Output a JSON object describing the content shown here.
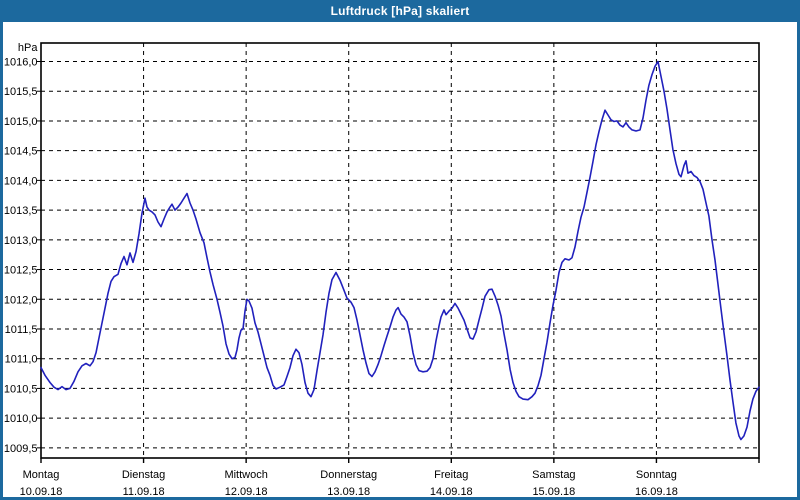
{
  "window": {
    "title": "Luftdruck [hPa] skaliert",
    "title_bar_color": "#1c699e",
    "border_color": "#1c699e",
    "content_background": "#ffffff"
  },
  "chart_data": {
    "type": "line",
    "title": "Luftdruck [hPa] skaliert",
    "ylabel": "hPa",
    "unit_label": "hPa",
    "grid": "dashed",
    "grid_color": "#000000",
    "plot_background": "#ffffff",
    "axis_color": "#000000",
    "ylim": [
      1009.33,
      1016.31
    ],
    "y_gridlines": [
      1016.0,
      1015.5,
      1015.0,
      1014.5,
      1014.0,
      1013.5,
      1013.0,
      1012.5,
      1012.0,
      1011.5,
      1011.0,
      1010.5,
      1010.0,
      1009.5
    ],
    "y_tick_labels": [
      "1016,0",
      "1015,5",
      "1015,0",
      "1014,5",
      "1014,0",
      "1013,5",
      "1013,0",
      "1012,5",
      "1012,0",
      "1011,5",
      "1011,0",
      "1010,5",
      "1010,0",
      "1009,5"
    ],
    "x_range_days": 7,
    "x_ticks": [
      {
        "day": "Montag",
        "date": "10.09.18"
      },
      {
        "day": "Dienstag",
        "date": "11.09.18"
      },
      {
        "day": "Mittwoch",
        "date": "12.09.18"
      },
      {
        "day": "Donnerstag",
        "date": "13.09.18"
      },
      {
        "day": "Freitag",
        "date": "14.09.18"
      },
      {
        "day": "Samstag",
        "date": "15.09.18"
      },
      {
        "day": "Sonntag",
        "date": "16.09.18"
      }
    ],
    "series": [
      {
        "name": "Luftdruck [hPa]",
        "color": "#2121bd",
        "points": [
          [
            0.0,
            1010.85
          ],
          [
            0.039,
            1010.72
          ],
          [
            0.088,
            1010.6
          ],
          [
            0.127,
            1010.52
          ],
          [
            0.166,
            1010.48
          ],
          [
            0.205,
            1010.53
          ],
          [
            0.244,
            1010.48
          ],
          [
            0.283,
            1010.5
          ],
          [
            0.322,
            1010.62
          ],
          [
            0.361,
            1010.78
          ],
          [
            0.4,
            1010.88
          ],
          [
            0.439,
            1010.92
          ],
          [
            0.478,
            1010.88
          ],
          [
            0.507,
            1010.95
          ],
          [
            0.536,
            1011.1
          ],
          [
            0.565,
            1011.35
          ],
          [
            0.595,
            1011.6
          ],
          [
            0.624,
            1011.85
          ],
          [
            0.653,
            1012.1
          ],
          [
            0.682,
            1012.3
          ],
          [
            0.712,
            1012.38
          ],
          [
            0.751,
            1012.42
          ],
          [
            0.78,
            1012.6
          ],
          [
            0.809,
            1012.72
          ],
          [
            0.838,
            1012.58
          ],
          [
            0.868,
            1012.78
          ],
          [
            0.897,
            1012.62
          ],
          [
            0.926,
            1012.8
          ],
          [
            0.955,
            1013.1
          ],
          [
            0.985,
            1013.45
          ],
          [
            1.014,
            1013.7
          ],
          [
            1.033,
            1013.55
          ],
          [
            1.053,
            1013.5
          ],
          [
            1.082,
            1013.47
          ],
          [
            1.111,
            1013.42
          ],
          [
            1.141,
            1013.3
          ],
          [
            1.17,
            1013.22
          ],
          [
            1.199,
            1013.35
          ],
          [
            1.228,
            1013.47
          ],
          [
            1.258,
            1013.55
          ],
          [
            1.277,
            1013.6
          ],
          [
            1.306,
            1013.5
          ],
          [
            1.336,
            1013.55
          ],
          [
            1.365,
            1013.62
          ],
          [
            1.394,
            1013.7
          ],
          [
            1.423,
            1013.78
          ],
          [
            1.453,
            1013.62
          ],
          [
            1.482,
            1013.5
          ],
          [
            1.511,
            1013.35
          ],
          [
            1.55,
            1013.12
          ],
          [
            1.589,
            1012.95
          ],
          [
            1.618,
            1012.7
          ],
          [
            1.648,
            1012.46
          ],
          [
            1.677,
            1012.25
          ],
          [
            1.716,
            1012.0
          ],
          [
            1.745,
            1011.78
          ],
          [
            1.774,
            1011.55
          ],
          [
            1.804,
            1011.25
          ],
          [
            1.833,
            1011.08
          ],
          [
            1.862,
            1011.0
          ],
          [
            1.891,
            1011.02
          ],
          [
            1.911,
            1011.15
          ],
          [
            1.93,
            1011.35
          ],
          [
            1.95,
            1011.48
          ],
          [
            1.969,
            1011.5
          ],
          [
            1.989,
            1011.8
          ],
          [
            2.008,
            1012.0
          ],
          [
            2.028,
            1011.97
          ],
          [
            2.057,
            1011.85
          ],
          [
            2.086,
            1011.6
          ],
          [
            2.116,
            1011.45
          ],
          [
            2.145,
            1011.25
          ],
          [
            2.174,
            1011.05
          ],
          [
            2.203,
            1010.85
          ],
          [
            2.233,
            1010.72
          ],
          [
            2.262,
            1010.55
          ],
          [
            2.291,
            1010.49
          ],
          [
            2.33,
            1010.52
          ],
          [
            2.369,
            1010.56
          ],
          [
            2.398,
            1010.7
          ],
          [
            2.428,
            1010.85
          ],
          [
            2.457,
            1011.05
          ],
          [
            2.486,
            1011.16
          ],
          [
            2.515,
            1011.1
          ],
          [
            2.545,
            1010.9
          ],
          [
            2.574,
            1010.6
          ],
          [
            2.603,
            1010.42
          ],
          [
            2.632,
            1010.36
          ],
          [
            2.662,
            1010.48
          ],
          [
            2.691,
            1010.8
          ],
          [
            2.72,
            1011.1
          ],
          [
            2.749,
            1011.4
          ],
          [
            2.779,
            1011.78
          ],
          [
            2.808,
            1012.1
          ],
          [
            2.837,
            1012.33
          ],
          [
            2.876,
            1012.45
          ],
          [
            2.915,
            1012.32
          ],
          [
            2.954,
            1012.15
          ],
          [
            2.983,
            1012.02
          ],
          [
            3.022,
            1011.95
          ],
          [
            3.052,
            1011.86
          ],
          [
            3.081,
            1011.65
          ],
          [
            3.11,
            1011.4
          ],
          [
            3.139,
            1011.15
          ],
          [
            3.169,
            1010.93
          ],
          [
            3.198,
            1010.75
          ],
          [
            3.227,
            1010.7
          ],
          [
            3.256,
            1010.78
          ],
          [
            3.286,
            1010.9
          ],
          [
            3.315,
            1011.05
          ],
          [
            3.344,
            1011.22
          ],
          [
            3.373,
            1011.38
          ],
          [
            3.403,
            1011.54
          ],
          [
            3.432,
            1011.7
          ],
          [
            3.461,
            1011.82
          ],
          [
            3.481,
            1011.86
          ],
          [
            3.51,
            1011.75
          ],
          [
            3.539,
            1011.7
          ],
          [
            3.568,
            1011.62
          ],
          [
            3.598,
            1011.38
          ],
          [
            3.627,
            1011.1
          ],
          [
            3.656,
            1010.9
          ],
          [
            3.685,
            1010.8
          ],
          [
            3.724,
            1010.78
          ],
          [
            3.763,
            1010.79
          ],
          [
            3.793,
            1010.85
          ],
          [
            3.822,
            1011.0
          ],
          [
            3.851,
            1011.3
          ],
          [
            3.88,
            1011.55
          ],
          [
            3.9,
            1011.7
          ],
          [
            3.929,
            1011.82
          ],
          [
            3.948,
            1011.74
          ],
          [
            3.978,
            1011.8
          ],
          [
            4.007,
            1011.85
          ],
          [
            4.036,
            1011.93
          ],
          [
            4.066,
            1011.85
          ],
          [
            4.095,
            1011.75
          ],
          [
            4.124,
            1011.65
          ],
          [
            4.153,
            1011.5
          ],
          [
            4.183,
            1011.35
          ],
          [
            4.212,
            1011.33
          ],
          [
            4.241,
            1011.45
          ],
          [
            4.27,
            1011.65
          ],
          [
            4.3,
            1011.85
          ],
          [
            4.329,
            1012.05
          ],
          [
            4.368,
            1012.16
          ],
          [
            4.397,
            1012.17
          ],
          [
            4.427,
            1012.05
          ],
          [
            4.456,
            1011.9
          ],
          [
            4.485,
            1011.72
          ],
          [
            4.514,
            1011.42
          ],
          [
            4.543,
            1011.15
          ],
          [
            4.573,
            1010.82
          ],
          [
            4.602,
            1010.6
          ],
          [
            4.631,
            1010.45
          ],
          [
            4.66,
            1010.36
          ],
          [
            4.699,
            1010.32
          ],
          [
            4.748,
            1010.31
          ],
          [
            4.787,
            1010.36
          ],
          [
            4.816,
            1010.42
          ],
          [
            4.846,
            1010.55
          ],
          [
            4.875,
            1010.72
          ],
          [
            4.904,
            1011.0
          ],
          [
            4.933,
            1011.28
          ],
          [
            4.962,
            1011.6
          ],
          [
            4.992,
            1011.9
          ],
          [
            5.021,
            1012.15
          ],
          [
            5.05,
            1012.45
          ],
          [
            5.079,
            1012.62
          ],
          [
            5.109,
            1012.68
          ],
          [
            5.148,
            1012.66
          ],
          [
            5.177,
            1012.7
          ],
          [
            5.206,
            1012.88
          ],
          [
            5.236,
            1013.15
          ],
          [
            5.265,
            1013.38
          ],
          [
            5.294,
            1013.55
          ],
          [
            5.323,
            1013.8
          ],
          [
            5.352,
            1014.05
          ],
          [
            5.382,
            1014.32
          ],
          [
            5.411,
            1014.6
          ],
          [
            5.44,
            1014.82
          ],
          [
            5.469,
            1015.02
          ],
          [
            5.499,
            1015.18
          ],
          [
            5.528,
            1015.1
          ],
          [
            5.557,
            1015.02
          ],
          [
            5.586,
            1014.99
          ],
          [
            5.615,
            1015.0
          ],
          [
            5.645,
            1014.93
          ],
          [
            5.674,
            1014.9
          ],
          [
            5.703,
            1014.97
          ],
          [
            5.732,
            1014.9
          ],
          [
            5.762,
            1014.85
          ],
          [
            5.801,
            1014.83
          ],
          [
            5.84,
            1014.85
          ],
          [
            5.869,
            1015.05
          ],
          [
            5.898,
            1015.35
          ],
          [
            5.927,
            1015.6
          ],
          [
            5.957,
            1015.78
          ],
          [
            5.986,
            1015.92
          ],
          [
            6.015,
            1016.0
          ],
          [
            6.045,
            1015.75
          ],
          [
            6.074,
            1015.5
          ],
          [
            6.103,
            1015.2
          ],
          [
            6.132,
            1014.85
          ],
          [
            6.161,
            1014.52
          ],
          [
            6.191,
            1014.28
          ],
          [
            6.22,
            1014.1
          ],
          [
            6.24,
            1014.06
          ],
          [
            6.269,
            1014.25
          ],
          [
            6.288,
            1014.33
          ],
          [
            6.308,
            1014.12
          ],
          [
            6.337,
            1014.15
          ],
          [
            6.366,
            1014.08
          ],
          [
            6.395,
            1014.05
          ],
          [
            6.425,
            1013.98
          ],
          [
            6.454,
            1013.85
          ],
          [
            6.483,
            1013.62
          ],
          [
            6.512,
            1013.4
          ],
          [
            6.542,
            1013.0
          ],
          [
            6.571,
            1012.66
          ],
          [
            6.6,
            1012.25
          ],
          [
            6.629,
            1011.85
          ],
          [
            6.658,
            1011.45
          ],
          [
            6.688,
            1011.05
          ],
          [
            6.717,
            1010.64
          ],
          [
            6.746,
            1010.28
          ],
          [
            6.775,
            1009.92
          ],
          [
            6.805,
            1009.7
          ],
          [
            6.824,
            1009.64
          ],
          [
            6.853,
            1009.7
          ],
          [
            6.883,
            1009.85
          ],
          [
            6.912,
            1010.12
          ],
          [
            6.941,
            1010.32
          ],
          [
            6.97,
            1010.45
          ],
          [
            7.0,
            1010.52
          ]
        ]
      }
    ]
  }
}
